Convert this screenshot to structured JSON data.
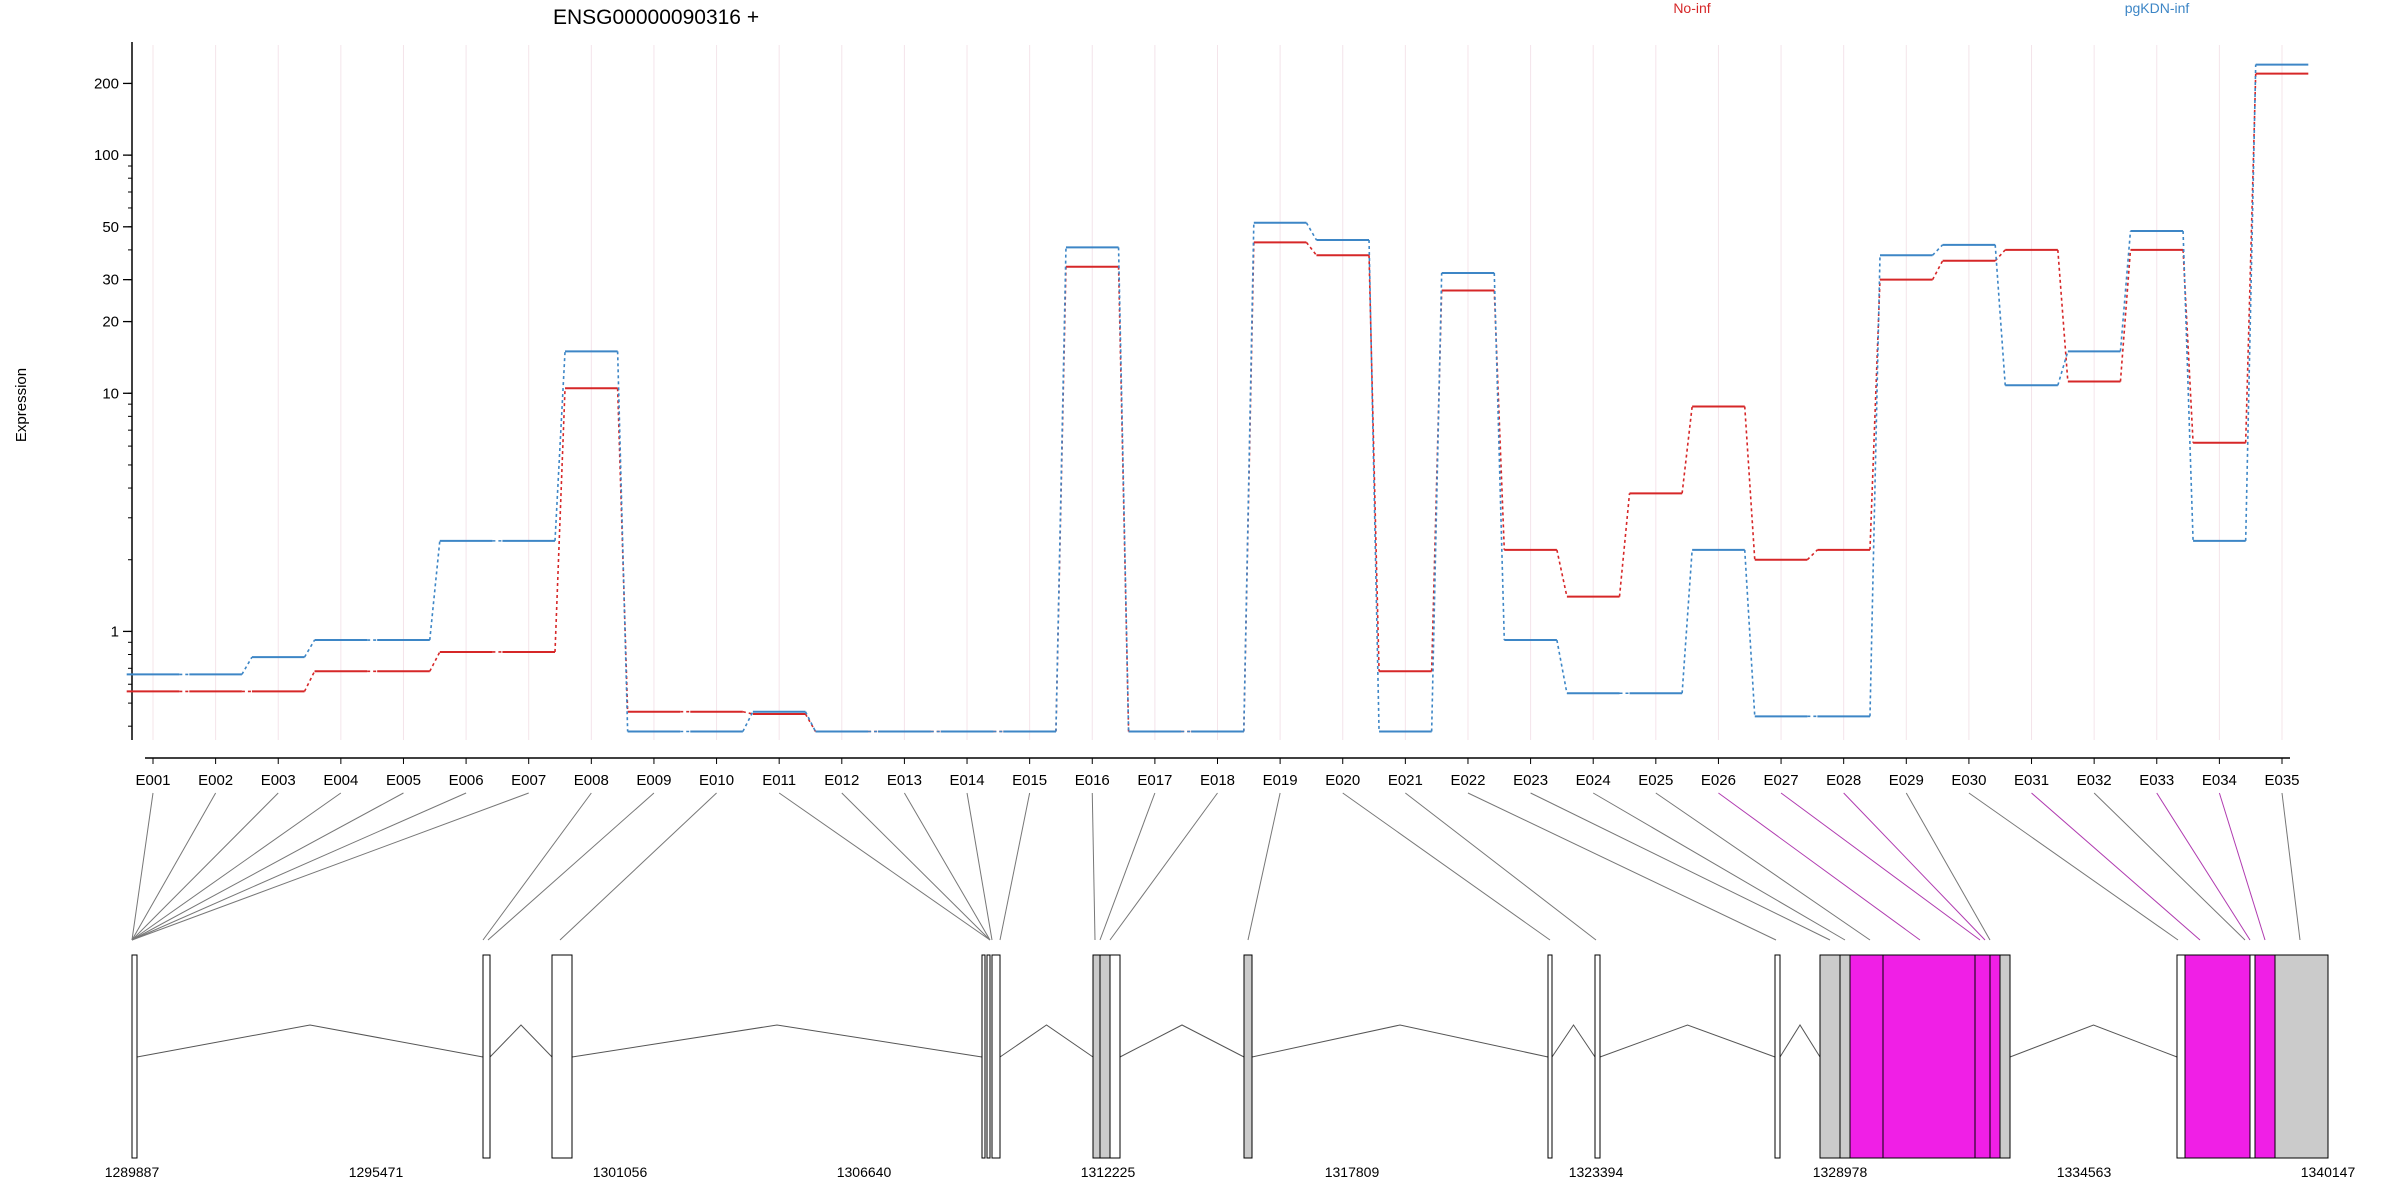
{
  "chart_data": {
    "type": "line",
    "title": "ENSG00000090316 +",
    "ylabel": "Expression",
    "xlabel": "",
    "yscale": "log",
    "ylim": [
      0.35,
      290
    ],
    "grid": true,
    "yticks": [
      {
        "value": 1,
        "label": "1"
      },
      {
        "value": 10,
        "label": "10"
      },
      {
        "value": 20,
        "label": "20"
      },
      {
        "value": 30,
        "label": "30"
      },
      {
        "value": 50,
        "label": "50"
      },
      {
        "value": 100,
        "label": "100"
      },
      {
        "value": 200,
        "label": "200"
      }
    ],
    "categories": [
      "E001",
      "E002",
      "E003",
      "E004",
      "E005",
      "E006",
      "E007",
      "E008",
      "E009",
      "E010",
      "E011",
      "E012",
      "E013",
      "E014",
      "E015",
      "E016",
      "E017",
      "E018",
      "E019",
      "E020",
      "E021",
      "E022",
      "E023",
      "E024",
      "E025",
      "E026",
      "E027",
      "E028",
      "E029",
      "E030",
      "E031",
      "E032",
      "E033",
      "E034",
      "E035"
    ],
    "series": [
      {
        "name": "No-inf",
        "color": "#d62728",
        "values": [
          0.56,
          0.56,
          0.56,
          0.68,
          0.68,
          0.82,
          0.82,
          10.5,
          0.46,
          0.46,
          0.45,
          0.38,
          0.38,
          0.38,
          0.38,
          34,
          0.38,
          0.38,
          43,
          38,
          0.68,
          27,
          2.2,
          1.4,
          3.8,
          8.8,
          2.0,
          2.2,
          30,
          36,
          40,
          11.2,
          40,
          6.2,
          220
        ]
      },
      {
        "name": "pgKDN-inf",
        "color": "#3d86c6",
        "values": [
          0.66,
          0.66,
          0.78,
          0.92,
          0.92,
          2.4,
          2.4,
          15,
          0.38,
          0.38,
          0.46,
          0.38,
          0.38,
          0.38,
          0.38,
          41,
          0.38,
          0.38,
          52,
          44,
          0.38,
          32,
          0.92,
          0.55,
          0.55,
          2.2,
          0.44,
          0.44,
          38,
          42,
          10.8,
          15,
          48,
          2.4,
          240
        ]
      }
    ],
    "gene_model": {
      "coord_ticks": [
        "1289887",
        "1295471",
        "1301056",
        "1306640",
        "1312225",
        "1317809",
        "1323394",
        "1328978",
        "1334563",
        "1340147"
      ],
      "exon_colors": [
        "white",
        "white",
        "white",
        "white",
        "white",
        "white",
        "white",
        "white",
        "white",
        "white",
        "white",
        "white",
        "white",
        "white",
        "white",
        "gray",
        "gray",
        "gray",
        "gray",
        "white",
        "white",
        "white",
        "white",
        "white",
        "gray",
        "magenta",
        "magenta",
        "magenta",
        "gray",
        "gray",
        "magenta",
        "gray",
        "magenta",
        "magenta",
        "gray"
      ],
      "highlight_color": "#f01fe6",
      "neutral_color": "#cbcbcb"
    }
  }
}
